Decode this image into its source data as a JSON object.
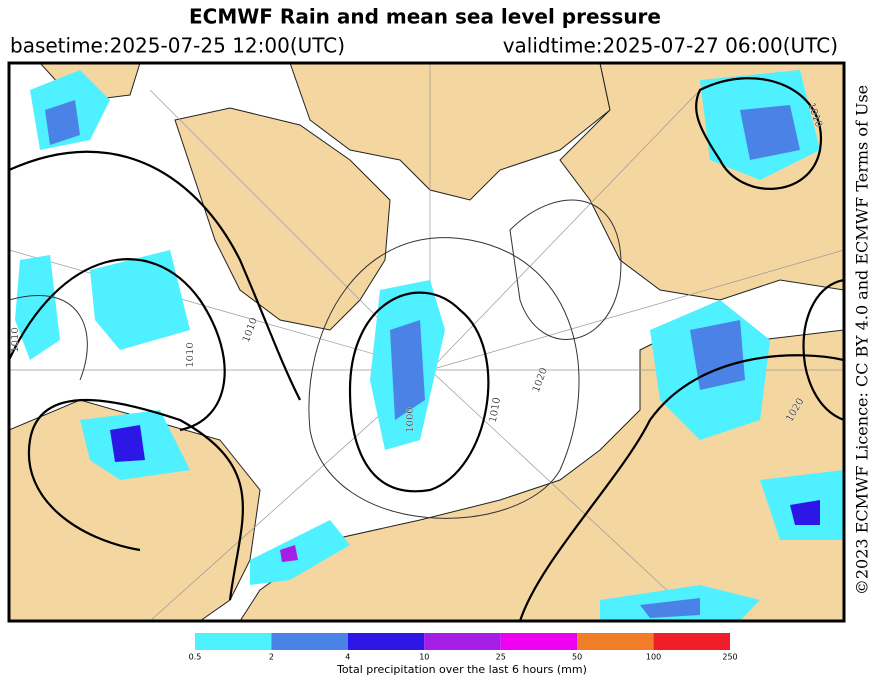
{
  "header": {
    "title": "ECMWF Rain and mean sea level pressure",
    "basetime": "basetime:2025-07-25 12:00(UTC)",
    "validtime": "validtime:2025-07-27 06:00(UTC)"
  },
  "licence": "©2023 ECMWF Licence: CC BY 4.0 and ECMWF Terms of Use",
  "isobar_labels": [
    1010,
    1010,
    1010,
    1020,
    1000,
    1010,
    1010,
    1020
  ],
  "legend": {
    "ticks": [
      0.5,
      2,
      4,
      10,
      25,
      50,
      100,
      250
    ],
    "colors": [
      "#4ff0ff",
      "#4b82e6",
      "#2d17e6",
      "#a51ee6",
      "#f000f0",
      "#f07d28",
      "#f01e28"
    ],
    "label": "Total precipitation over the last 6 hours (mm)"
  }
}
